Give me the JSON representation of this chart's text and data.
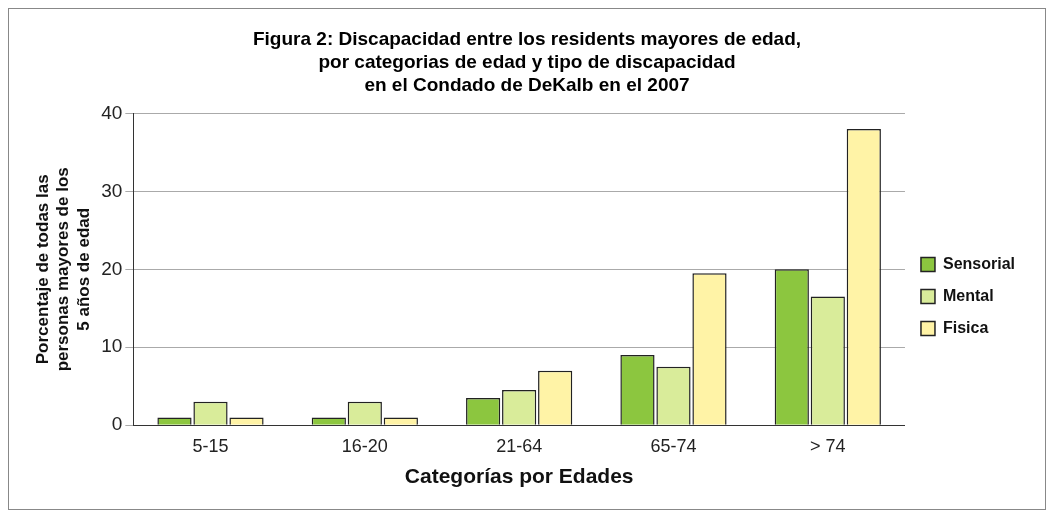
{
  "chart_data": {
    "type": "bar",
    "title": "Figura 2: Discapacidad entre los residents mayores de edad,\npor categorias de edad y tipo de discapacidad\nen el Condado de DeKalb en el 2007",
    "xlabel": "Categorías por Edades",
    "ylabel": "Porcentaje de todas las\npersonas mayores de los\n5 años de edad",
    "categories": [
      "5-15",
      "16-20",
      "21-64",
      "65-74",
      "> 74"
    ],
    "series": [
      {
        "name": "Sensorial",
        "color": "#8cc63f",
        "values": [
          1,
          1,
          3.5,
          9,
          20
        ]
      },
      {
        "name": "Mental",
        "color": "#d9ec9a",
        "values": [
          3,
          3,
          4.5,
          7.5,
          16.5
        ]
      },
      {
        "name": "Fisica",
        "color": "#fff3a6",
        "values": [
          1,
          1,
          7,
          19.5,
          38
        ]
      }
    ],
    "ylim": [
      0,
      40
    ],
    "yticks": [
      0,
      10,
      20,
      30,
      40
    ],
    "grid": "y",
    "legend": "right"
  }
}
